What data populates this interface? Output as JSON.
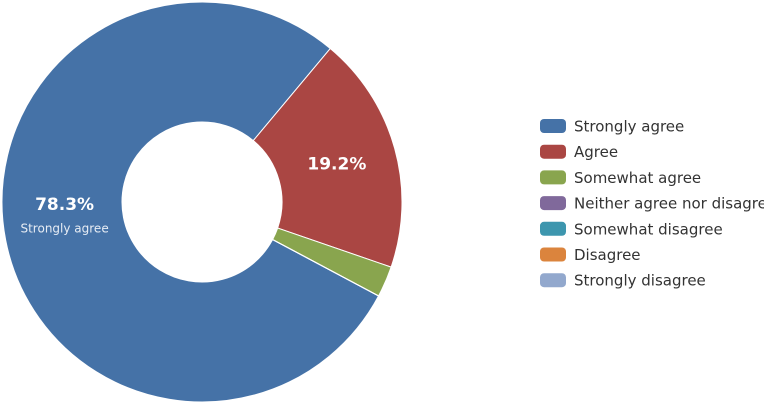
{
  "chart_data": {
    "type": "donut",
    "categories": [
      "Strongly agree",
      "Agree",
      "Somewhat agree",
      "Neither agree nor disagree",
      "Somewhat disagree",
      "Disagree",
      "Strongly disagree"
    ],
    "values": [
      78.3,
      19.2,
      2.5,
      0,
      0,
      0,
      0
    ],
    "value_labels": [
      "78.3%",
      "19.2%",
      null,
      null,
      null,
      null,
      null
    ],
    "colors": [
      "#4572a7",
      "#aa4643",
      "#89a54e",
      "#80699b",
      "#3d96ae",
      "#db843d",
      "#92a8cd"
    ],
    "legend": "right"
  }
}
